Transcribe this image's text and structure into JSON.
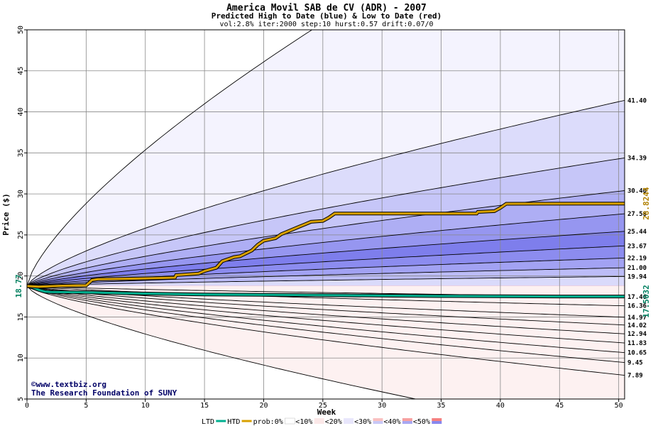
{
  "chart_data": {
    "type": "area",
    "title": "America Movil SAB de CV (ADR) - 2007",
    "subtitle": "Predicted High to Date (blue) &  Low to Date (red)",
    "params": "vol:2.8% iter:2000 step:10 hurst:0.57 drift:0.07/0",
    "xlabel": "Week",
    "ylabel": "Price ($)",
    "xlim": [
      0,
      50.5
    ],
    "ylim": [
      5,
      50
    ],
    "x_ticks": [
      "0",
      "5",
      "10",
      "15",
      "20",
      "25",
      "30",
      "35",
      "40",
      "45",
      "50"
    ],
    "y_ticks": [
      "5",
      "10",
      "15",
      "20",
      "25",
      "30",
      "35",
      "40",
      "45",
      "50"
    ],
    "start_price": "18.77",
    "start_value": 18.77,
    "grid": true,
    "high_curves": [
      {
        "end": 72.0,
        "k": 0.72,
        "fill": "#f4f3fe"
      },
      {
        "end": 41.4,
        "label": "41.40",
        "k": 0.72,
        "fill": "#dcdcfb"
      },
      {
        "end": 34.39,
        "label": "34.39",
        "k": 0.72,
        "fill": "#c6c6f8"
      },
      {
        "end": 30.4,
        "label": "30.40",
        "k": 0.72,
        "fill": "#aeaef4"
      },
      {
        "end": 27.58,
        "label": "27.58",
        "k": 0.72,
        "fill": "#9696f0"
      },
      {
        "end": 25.44,
        "label": "25.44",
        "k": 0.72,
        "fill": "#7e7eec"
      },
      {
        "end": 23.67,
        "label": "23.67",
        "k": 0.72,
        "fill": "#8c8cef"
      },
      {
        "end": 22.19,
        "label": "22.19",
        "k": 0.72,
        "fill": "#a2a2f3"
      },
      {
        "end": 21.0,
        "label": "21.00",
        "k": 0.72,
        "fill": "#bcbcf7"
      },
      {
        "end": 19.94,
        "label": "19.94",
        "k": 0.72,
        "fill": "#dadafb"
      }
    ],
    "low_curves": [
      {
        "end": 17.46,
        "label": "17.46",
        "k": 0.72,
        "fill": "#fde6e6"
      },
      {
        "end": 16.36,
        "label": "16.36",
        "k": 0.72,
        "fill": "#fbcaca"
      },
      {
        "end": 14.97,
        "label": "14.97",
        "k": 0.72,
        "fill": "#f9aeae"
      },
      {
        "end": 14.02,
        "label": "14.02",
        "k": 0.72,
        "fill": "#f79292"
      },
      {
        "end": 12.94,
        "label": "12.94",
        "k": 0.72,
        "fill": "#f67e7e"
      },
      {
        "end": 11.83,
        "label": "11.83",
        "k": 0.72,
        "fill": "#f78e8e"
      },
      {
        "end": 10.65,
        "label": "10.65",
        "k": 0.72,
        "fill": "#f9a8a8"
      },
      {
        "end": 9.45,
        "label": "9.45",
        "k": 0.72,
        "fill": "#fbc6c6"
      },
      {
        "end": 7.89,
        "label": "7.89",
        "k": 0.72,
        "fill": "#fde0e0"
      },
      {
        "end": 0.0,
        "k": 0.72,
        "fill": "#fdf1f1"
      }
    ],
    "htd_series": {
      "name": "HTD",
      "color": "#d8a000",
      "end_label": "28.8244",
      "points": [
        [
          0,
          18.77
        ],
        [
          1,
          18.7
        ],
        [
          2,
          18.75
        ],
        [
          3,
          18.8
        ],
        [
          5,
          18.85
        ],
        [
          5.5,
          19.5
        ],
        [
          6,
          19.6
        ],
        [
          8,
          19.65
        ],
        [
          10,
          19.7
        ],
        [
          12.5,
          19.8
        ],
        [
          12.6,
          20.1
        ],
        [
          14.5,
          20.3
        ],
        [
          15,
          20.6
        ],
        [
          16,
          21.0
        ],
        [
          16.5,
          21.8
        ],
        [
          17.5,
          22.3
        ],
        [
          18,
          22.4
        ],
        [
          19,
          23.1
        ],
        [
          19.5,
          23.8
        ],
        [
          20,
          24.3
        ],
        [
          21,
          24.6
        ],
        [
          21.5,
          25.1
        ],
        [
          22,
          25.4
        ],
        [
          23,
          26.0
        ],
        [
          23.5,
          26.3
        ],
        [
          24,
          26.6
        ],
        [
          25,
          26.7
        ],
        [
          25.5,
          27.1
        ],
        [
          26,
          27.6
        ],
        [
          30,
          27.6
        ],
        [
          35,
          27.6
        ],
        [
          38,
          27.6
        ],
        [
          38.1,
          27.8
        ],
        [
          39.5,
          27.9
        ],
        [
          40,
          28.3
        ],
        [
          40.5,
          28.8
        ],
        [
          50.5,
          28.82
        ]
      ]
    },
    "ltd_series": {
      "name": "LTD",
      "color": "#00b090",
      "end_label": "17.5032",
      "points": [
        [
          0,
          18.77
        ],
        [
          0.5,
          18.6
        ],
        [
          1,
          18.3
        ],
        [
          1.5,
          18.1
        ],
        [
          2,
          18.05
        ],
        [
          5,
          18.0
        ],
        [
          8,
          17.9
        ],
        [
          10,
          17.85
        ],
        [
          15,
          17.75
        ],
        [
          20,
          17.7
        ],
        [
          25,
          17.65
        ],
        [
          30,
          17.6
        ],
        [
          35,
          17.55
        ],
        [
          40,
          17.52
        ],
        [
          45,
          17.5
        ],
        [
          50.5,
          17.5
        ]
      ]
    },
    "legend": [
      "LTD",
      "HTD",
      "prob:0%",
      "<10%",
      "<20%",
      "<30%",
      "<40%",
      "<50%"
    ],
    "legend_colors": {
      "ltd": "#00b090",
      "htd": "#d8a000",
      "p0": "#ffffff",
      "p10": "#fbe8e8",
      "p20": "#e8e6fb",
      "p30a": "#f9c0c0",
      "p30b": "#c8c8f6",
      "p40a": "#f7a0a0",
      "p40b": "#a8a8f2",
      "p50a": "#f58080",
      "p50b": "#8888ee"
    },
    "credit_line1": "©www.textbiz.org",
    "credit_line2": "The Research Foundation of SUNY"
  }
}
